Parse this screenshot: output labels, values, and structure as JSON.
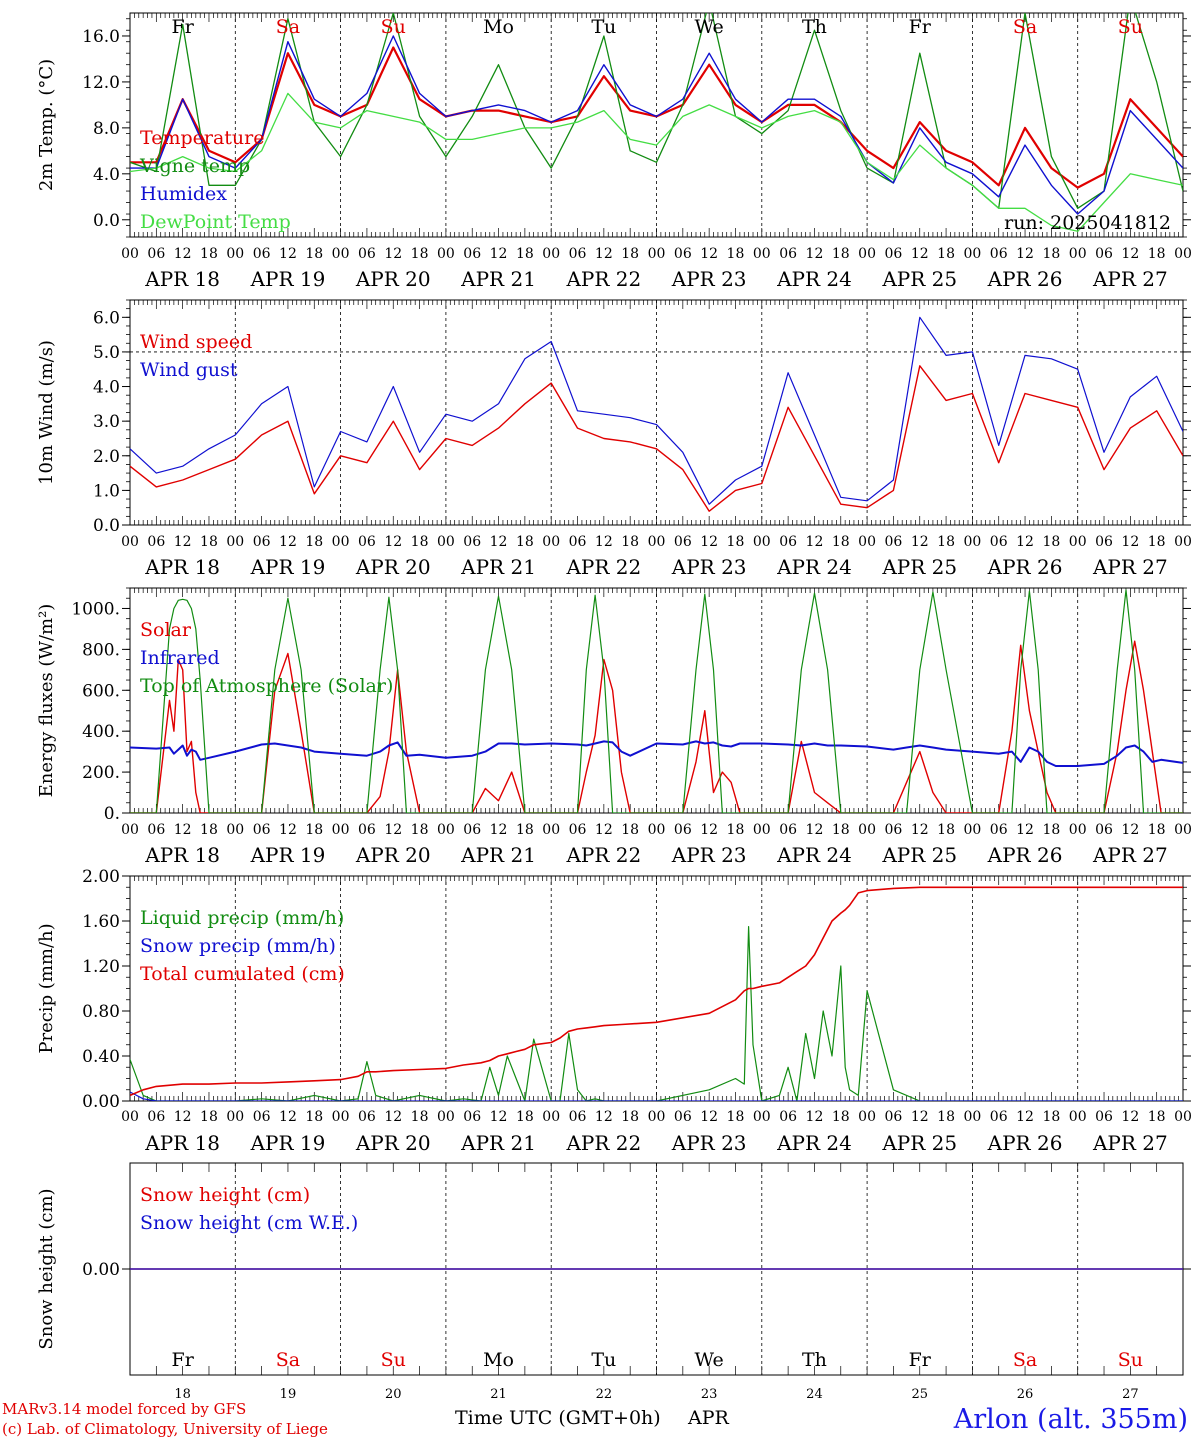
{
  "days": {
    "weekdays": [
      "Fr",
      "Sa",
      "Su",
      "Mo",
      "Tu",
      "We",
      "Th",
      "Fr",
      "Sa",
      "Su"
    ],
    "weekday_colors": [
      "#000000",
      "#e00000",
      "#e00000",
      "#000000",
      "#000000",
      "#000000",
      "#000000",
      "#000000",
      "#e00000",
      "#e00000"
    ],
    "dates": [
      "APR 18",
      "APR 19",
      "APR 20",
      "APR 21",
      "APR 22",
      "APR 23",
      "APR 24",
      "APR 25",
      "APR 26",
      "APR 27"
    ],
    "day_numbers": [
      "18",
      "19",
      "20",
      "21",
      "22",
      "23",
      "24",
      "25",
      "26",
      "27"
    ],
    "hour_labels": [
      "00",
      "06",
      "12",
      "18"
    ],
    "final_hour_label": "00"
  },
  "colors": {
    "red": "#e00000",
    "blue": "#1010d0",
    "dark_green": "#128c12",
    "light_green": "#44dd44",
    "black": "#000000",
    "credit": "#e00000",
    "location": "#1a1ae6"
  },
  "chart_data": [
    {
      "id": "temperature",
      "type": "line",
      "ylabel": "2m Temp. (°C)",
      "ylim": [
        -1.5,
        18.0
      ],
      "yticks": [
        0.0,
        4.0,
        8.0,
        12.0,
        16.0
      ],
      "ytick_labels": [
        "0.0",
        "4.0",
        "8.0",
        "12.0",
        "16.0"
      ],
      "annotation": "run: 2025041812",
      "x": [
        0,
        6,
        12,
        18,
        24,
        30,
        36,
        42,
        48,
        54,
        60,
        66,
        72,
        78,
        84,
        90,
        96,
        102,
        108,
        114,
        120,
        126,
        132,
        138,
        144,
        150,
        156,
        162,
        168,
        174,
        180,
        186,
        192,
        198,
        204,
        210,
        216,
        222,
        228,
        234,
        240
      ],
      "series": [
        {
          "name": "Temperature",
          "color": "#e00000",
          "width": 2.2,
          "values": [
            5.0,
            5.0,
            10.5,
            6.0,
            5.0,
            7.0,
            14.5,
            10.0,
            9.0,
            10.0,
            15.0,
            10.5,
            9.0,
            9.5,
            9.5,
            9.0,
            8.5,
            9.0,
            12.5,
            9.5,
            9.0,
            10.0,
            13.5,
            10.0,
            8.5,
            10.0,
            10.0,
            8.5,
            6.0,
            4.5,
            8.5,
            6.0,
            5.0,
            3.0,
            8.0,
            4.5,
            2.8,
            4.0,
            10.5,
            8.0,
            5.5
          ]
        },
        {
          "name": "Vigne temp",
          "color": "#128c12",
          "width": 1.3,
          "values": [
            5.0,
            4.2,
            17.0,
            3.0,
            3.0,
            7.0,
            17.5,
            8.5,
            5.5,
            10.0,
            18.0,
            9.0,
            5.5,
            9.0,
            13.5,
            8.0,
            4.5,
            9.0,
            16.0,
            6.0,
            5.0,
            10.0,
            19.0,
            9.0,
            7.5,
            9.5,
            16.5,
            9.5,
            4.5,
            3.2,
            14.5,
            4.5,
            3.0,
            1.0,
            18.0,
            5.5,
            1.0,
            2.5,
            19.5,
            12.0,
            2.5
          ]
        },
        {
          "name": "Humidex",
          "color": "#1010d0",
          "width": 1.4,
          "values": [
            4.5,
            4.5,
            10.5,
            5.5,
            4.5,
            7.0,
            15.5,
            10.5,
            9.0,
            11.0,
            16.0,
            11.0,
            9.0,
            9.5,
            10.0,
            9.5,
            8.5,
            9.5,
            13.5,
            10.0,
            9.0,
            10.5,
            14.5,
            10.5,
            8.5,
            10.5,
            10.5,
            9.0,
            5.0,
            3.2,
            8.0,
            5.0,
            4.0,
            2.0,
            6.5,
            3.0,
            0.5,
            2.5,
            9.5,
            7.0,
            4.5
          ]
        },
        {
          "name": "DewPoint Temp",
          "color": "#44dd44",
          "width": 1.3,
          "values": [
            4.2,
            4.5,
            5.5,
            4.5,
            4.2,
            6.0,
            11.0,
            8.5,
            8.0,
            9.5,
            9.0,
            8.5,
            7.0,
            7.0,
            7.5,
            8.0,
            8.0,
            8.5,
            9.5,
            7.0,
            6.5,
            9.0,
            10.0,
            9.0,
            8.0,
            9.0,
            9.5,
            8.5,
            5.0,
            3.5,
            6.5,
            4.5,
            3.0,
            1.0,
            1.0,
            -0.5,
            -1.0,
            1.5,
            4.0,
            3.5,
            3.0
          ]
        }
      ]
    },
    {
      "id": "wind",
      "type": "line",
      "ylabel": "10m Wind (m/s)",
      "ylim": [
        0.0,
        6.5
      ],
      "yticks": [
        0.0,
        1.0,
        2.0,
        3.0,
        4.0,
        5.0,
        6.0
      ],
      "ytick_labels": [
        "0.0",
        "1.0",
        "2.0",
        "3.0",
        "4.0",
        "5.0",
        "6.0"
      ],
      "dashed_level": 5.0,
      "x": [
        0,
        6,
        12,
        18,
        24,
        30,
        36,
        42,
        48,
        54,
        60,
        66,
        72,
        78,
        84,
        90,
        96,
        102,
        108,
        114,
        120,
        126,
        132,
        138,
        144,
        150,
        156,
        162,
        168,
        174,
        180,
        186,
        192,
        198,
        204,
        210,
        216,
        222,
        228,
        234,
        240
      ],
      "series": [
        {
          "name": "Wind speed",
          "color": "#e00000",
          "width": 1.4,
          "values": [
            1.7,
            1.1,
            1.3,
            1.6,
            1.9,
            2.6,
            3.0,
            0.9,
            2.0,
            1.8,
            3.0,
            1.6,
            2.5,
            2.3,
            2.8,
            3.5,
            4.1,
            2.8,
            2.5,
            2.4,
            2.2,
            1.6,
            0.4,
            1.0,
            1.2,
            3.4,
            2.0,
            0.6,
            0.5,
            1.0,
            4.6,
            3.6,
            3.8,
            1.8,
            3.8,
            3.6,
            3.4,
            1.6,
            2.8,
            3.3,
            2.0
          ]
        },
        {
          "name": "Wind gust",
          "color": "#1010d0",
          "width": 1.2,
          "values": [
            2.2,
            1.5,
            1.7,
            2.2,
            2.6,
            3.5,
            4.0,
            1.1,
            2.7,
            2.4,
            4.0,
            2.1,
            3.2,
            3.0,
            3.5,
            4.8,
            5.3,
            3.3,
            3.2,
            3.1,
            2.9,
            2.1,
            0.6,
            1.3,
            1.7,
            4.4,
            2.6,
            0.8,
            0.7,
            1.3,
            6.0,
            4.9,
            5.0,
            2.3,
            4.9,
            4.8,
            4.5,
            2.1,
            3.7,
            4.3,
            2.7
          ]
        }
      ]
    },
    {
      "id": "energy",
      "type": "line",
      "ylabel": "Energy fluxes (W/m²)",
      "ylim": [
        0,
        1100
      ],
      "yticks": [
        0,
        200,
        400,
        600,
        800,
        1000
      ],
      "ytick_labels": [
        "0.",
        "200.",
        "400.",
        "600.",
        "800.",
        "1000."
      ],
      "x": [
        0,
        6,
        9,
        10,
        11,
        12,
        13,
        14,
        15,
        16,
        18,
        24,
        30,
        33,
        36,
        39,
        42,
        48,
        54,
        57,
        59,
        61,
        63,
        66,
        72,
        78,
        81,
        84,
        87,
        90,
        96,
        102,
        104,
        106,
        108,
        110,
        112,
        114,
        120,
        126,
        129,
        131,
        133,
        135,
        137,
        139,
        144,
        150,
        153,
        156,
        159,
        162,
        168,
        174,
        177,
        180,
        183,
        186,
        192,
        198,
        201,
        203,
        205,
        207,
        209,
        211,
        216,
        222,
        225,
        227,
        229,
        231,
        233,
        235,
        240
      ],
      "series": [
        {
          "name": "Solar",
          "color": "#e00000",
          "width": 1.4,
          "values": [
            0,
            0,
            550,
            400,
            750,
            700,
            300,
            350,
            100,
            0,
            0,
            0,
            0,
            600,
            780,
            400,
            0,
            0,
            0,
            80,
            300,
            700,
            300,
            0,
            0,
            0,
            120,
            60,
            200,
            0,
            0,
            0,
            200,
            380,
            750,
            600,
            200,
            0,
            0,
            0,
            250,
            500,
            100,
            200,
            150,
            0,
            0,
            0,
            350,
            100,
            50,
            0,
            0,
            0,
            150,
            300,
            100,
            0,
            0,
            0,
            400,
            820,
            500,
            300,
            100,
            0,
            0,
            0,
            300,
            600,
            840,
            600,
            300,
            0,
            0
          ]
        },
        {
          "name": "Infrared",
          "color": "#1010d0",
          "width": 2.0,
          "values": [
            320,
            315,
            320,
            290,
            310,
            330,
            280,
            310,
            300,
            260,
            270,
            300,
            335,
            340,
            330,
            320,
            300,
            290,
            280,
            300,
            330,
            345,
            280,
            285,
            270,
            280,
            300,
            340,
            340,
            335,
            340,
            335,
            330,
            340,
            350,
            345,
            300,
            280,
            340,
            335,
            350,
            340,
            345,
            330,
            325,
            340,
            340,
            335,
            330,
            340,
            330,
            330,
            325,
            310,
            320,
            330,
            320,
            310,
            300,
            290,
            300,
            250,
            320,
            300,
            250,
            230,
            230,
            240,
            280,
            320,
            330,
            300,
            250,
            260,
            245
          ]
        },
        {
          "name": "Top of Atmosphere (Solar)",
          "color": "#128c12",
          "width": 1.2,
          "values": [
            0,
            0,
            900,
            1000,
            1040,
            1045,
            1040,
            1000,
            900,
            650,
            0,
            0,
            0,
            700,
            1050,
            700,
            0,
            0,
            0,
            700,
            1055,
            700,
            0,
            0,
            0,
            0,
            700,
            1060,
            700,
            0,
            0,
            0,
            700,
            1065,
            700,
            0,
            0,
            0,
            0,
            0,
            700,
            1070,
            700,
            0,
            0,
            0,
            0,
            0,
            700,
            1075,
            700,
            0,
            0,
            0,
            0,
            700,
            1080,
            700,
            0,
            0,
            0,
            700,
            1085,
            700,
            0,
            0,
            0,
            0,
            700,
            1090,
            700,
            0,
            0,
            0,
            0
          ]
        }
      ]
    },
    {
      "id": "precip",
      "type": "line",
      "ylabel": "Precip (mm/h)",
      "ylim": [
        0.0,
        2.0
      ],
      "yticks": [
        0.0,
        0.4,
        0.8,
        1.2,
        1.6,
        2.0
      ],
      "ytick_labels": [
        "0.00",
        "0.40",
        "0.80",
        "1.20",
        "1.60",
        "2.00"
      ],
      "x": [
        0,
        3,
        6,
        12,
        18,
        24,
        30,
        36,
        42,
        48,
        52,
        54,
        56,
        60,
        66,
        72,
        76,
        80,
        82,
        84,
        86,
        88,
        90,
        92,
        96,
        98,
        100,
        102,
        104,
        106,
        108,
        112,
        120,
        132,
        138,
        140,
        141,
        142,
        144,
        148,
        150,
        152,
        154,
        156,
        158,
        160,
        162,
        163,
        164,
        166,
        168,
        174,
        180,
        192,
        204,
        216,
        228,
        240
      ],
      "series": [
        {
          "name": "Liquid precip (mm/h)",
          "color": "#128c12",
          "width": 1.2,
          "values": [
            0.37,
            0.05,
            0.0,
            0.0,
            0.0,
            0.0,
            0.02,
            0.0,
            0.05,
            0.0,
            0.02,
            0.35,
            0.05,
            0.0,
            0.05,
            0.0,
            0.02,
            0.0,
            0.3,
            0.05,
            0.4,
            0.2,
            0.0,
            0.55,
            0.0,
            0.0,
            0.6,
            0.1,
            0.0,
            0.02,
            0.0,
            0.0,
            0.0,
            0.1,
            0.2,
            0.15,
            1.55,
            0.5,
            0.0,
            0.05,
            0.3,
            0.0,
            0.6,
            0.2,
            0.8,
            0.4,
            1.2,
            0.3,
            0.1,
            0.05,
            0.98,
            0.1,
            0.0,
            0.0,
            0.0,
            0.0,
            0.0,
            0.0
          ]
        },
        {
          "name": "Snow precip (mm/h)",
          "color": "#1010d0",
          "width": 1.2,
          "values": [
            0.08,
            0.02,
            0.0,
            0.0,
            0.0,
            0.0,
            0.0,
            0.0,
            0.0,
            0.0,
            0.0,
            0.0,
            0.0,
            0.0,
            0.0,
            0.0,
            0.0,
            0.0,
            0.0,
            0.0,
            0.0,
            0.0,
            0.0,
            0.0,
            0.0,
            0.0,
            0.0,
            0.0,
            0.0,
            0.0,
            0.0,
            0.0,
            0.0,
            0.0,
            0.0,
            0.0,
            0.0,
            0.0,
            0.0,
            0.0,
            0.0,
            0.0,
            0.0,
            0.0,
            0.0,
            0.0,
            0.0,
            0.0,
            0.0,
            0.0,
            0.0,
            0.0,
            0.0,
            0.0,
            0.0,
            0.0,
            0.0,
            0.0
          ]
        },
        {
          "name": "Total cumulated (cm)",
          "color": "#e00000",
          "width": 1.6,
          "values": [
            0.05,
            0.1,
            0.13,
            0.15,
            0.15,
            0.16,
            0.16,
            0.17,
            0.18,
            0.19,
            0.22,
            0.26,
            0.26,
            0.27,
            0.28,
            0.29,
            0.32,
            0.34,
            0.36,
            0.4,
            0.42,
            0.44,
            0.46,
            0.5,
            0.52,
            0.56,
            0.62,
            0.64,
            0.65,
            0.66,
            0.67,
            0.68,
            0.7,
            0.78,
            0.9,
            0.98,
            1.0,
            1.0,
            1.02,
            1.05,
            1.1,
            1.15,
            1.2,
            1.3,
            1.45,
            1.6,
            1.67,
            1.7,
            1.74,
            1.85,
            1.87,
            1.89,
            1.9,
            1.9,
            1.9,
            1.9,
            1.9,
            1.9
          ]
        }
      ]
    },
    {
      "id": "snow",
      "type": "line",
      "ylabel": "Snow height (cm)",
      "ylim": [
        -1.0,
        1.0
      ],
      "yticks": [
        0.0
      ],
      "ytick_labels": [
        "0.00"
      ],
      "x": [
        0,
        240
      ],
      "series": [
        {
          "name": "Snow height (cm)",
          "color": "#e00000",
          "width": 1.4,
          "values": [
            0.0,
            0.0
          ]
        },
        {
          "name": "Snow height (cm W.E.)",
          "color": "#1010d0",
          "width": 1.2,
          "values": [
            0.0,
            0.0
          ]
        }
      ]
    }
  ],
  "footer": {
    "xlabel": "Time UTC (GMT+0h)",
    "month": "APR",
    "credit_line1": "MARv3.14 model forced by GFS",
    "credit_line2": "(c) Lab. of Climatology, University of Liege",
    "location": "Arlon (alt. 355m)"
  }
}
